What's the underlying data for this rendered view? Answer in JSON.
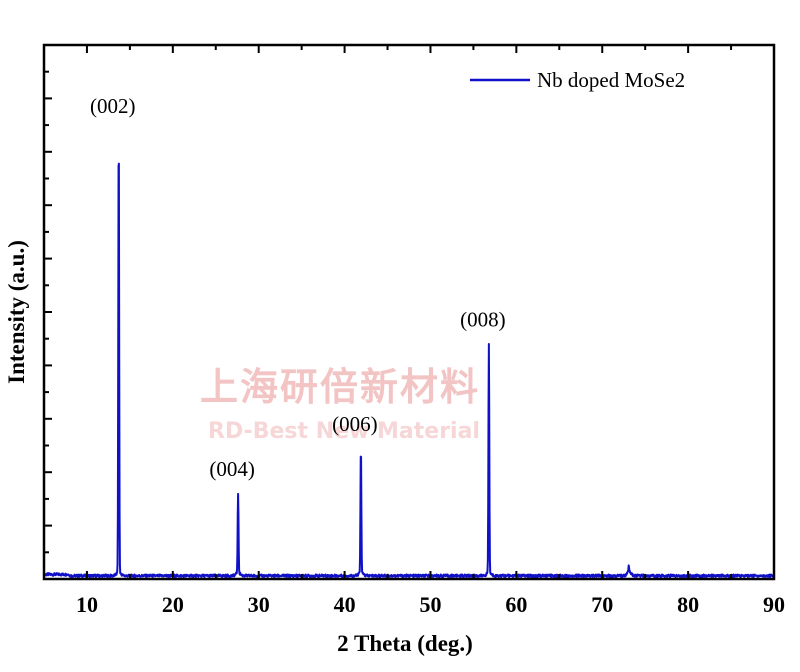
{
  "chart_data": {
    "type": "line",
    "xlabel": "2 Theta (deg.)",
    "ylabel": "Intensity (a.u.)",
    "xlim": [
      5,
      90
    ],
    "ylim": [
      0,
      100
    ],
    "x_ticks": [
      10,
      20,
      30,
      40,
      50,
      60,
      70,
      80,
      90
    ],
    "y_axis_tick_labels": "none",
    "grid": false,
    "legend_position": "top-right",
    "series": [
      {
        "name": "Nb doped MoSe2",
        "color": "#1010c8",
        "baseline": 0.6,
        "peaks": [
          {
            "x": 13.7,
            "y": 83.5,
            "label": "(002)"
          },
          {
            "x": 27.6,
            "y": 15.5,
            "label": "(004)"
          },
          {
            "x": 41.9,
            "y": 24.0,
            "label": "(006)"
          },
          {
            "x": 56.8,
            "y": 43.5,
            "label": "(008)"
          },
          {
            "x": 73.1,
            "y": 1.8,
            "label": ""
          }
        ]
      }
    ],
    "watermark": {
      "line1": "上海研倍新材料",
      "line2": "RD-Best New Material"
    }
  }
}
